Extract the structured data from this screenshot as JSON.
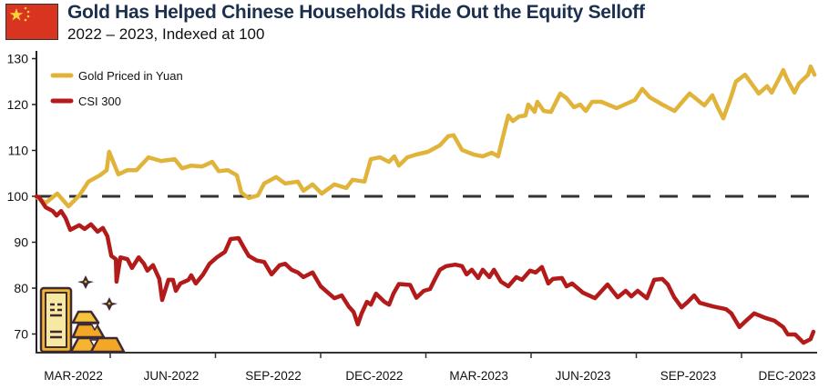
{
  "header": {
    "title": "Gold Has Helped Chinese Households Ride Out the Equity Selloff",
    "subtitle": "2022 – 2023, Indexed at 100",
    "flag_icon": "china-flag-icon"
  },
  "colors": {
    "gold": "#e0b43a",
    "csi": "#b31b1b",
    "baseline": "#333333",
    "axis": "#222222",
    "title": "#1b2f4e"
  },
  "chart_data": {
    "type": "line",
    "title": "Gold Has Helped Chinese Households Ride Out the Equity Selloff",
    "subtitle": "2022 – 2023, Indexed at 100",
    "xlabel": "",
    "ylabel": "",
    "x_units": "months since Jan 2022",
    "xlim": [
      0.9,
      23.1
    ],
    "ylim": [
      66,
      131
    ],
    "yticks": [
      70,
      80,
      90,
      100,
      110,
      120,
      130
    ],
    "ytick_labels": [
      "70",
      "80",
      "90",
      "100",
      "110",
      "120",
      "130"
    ],
    "xticks_at": [
      3,
      6,
      9,
      12,
      15,
      18,
      21
    ],
    "xtick_labels": [
      "MAR-2022",
      "JUN-2022",
      "SEP-2022",
      "DEC-2022",
      "MAR-2023",
      "JUN-2023",
      "SEP-2023",
      "DEC-2023"
    ],
    "xtick_label_positions": [
      1.95,
      4.74,
      7.65,
      10.53,
      13.51,
      16.48,
      19.48,
      22.3
    ],
    "reference_line": 100,
    "grid": false,
    "legend": {
      "placement": "top-left",
      "entries": [
        "Gold Priced in Yuan",
        "CSI 300"
      ]
    },
    "series": [
      {
        "name": "Gold Priced in Yuan",
        "color": "#e0b43a",
        "x": [
          0.9,
          1.16,
          1.49,
          1.81,
          2.12,
          2.38,
          2.71,
          2.9,
          2.97,
          3.23,
          3.49,
          3.75,
          4.09,
          4.45,
          4.84,
          5.05,
          5.31,
          5.62,
          5.91,
          6.09,
          6.35,
          6.61,
          6.74,
          6.95,
          7.21,
          7.39,
          7.73,
          7.99,
          8.35,
          8.51,
          8.77,
          9.03,
          9.39,
          9.73,
          9.91,
          10.25,
          10.43,
          10.69,
          10.95,
          11.1,
          11.23,
          11.47,
          11.73,
          12.06,
          12.4,
          12.64,
          12.79,
          13.03,
          13.36,
          13.62,
          13.88,
          14.06,
          14.22,
          14.35,
          14.48,
          14.66,
          14.84,
          14.92,
          15.1,
          15.18,
          15.36,
          15.57,
          15.83,
          16.01,
          16.22,
          16.4,
          16.56,
          16.74,
          17.0,
          17.44,
          17.96,
          18.17,
          18.38,
          18.74,
          19.09,
          19.29,
          19.52,
          19.94,
          20.17,
          20.32,
          20.48,
          20.69,
          20.84,
          21.1,
          21.49,
          21.73,
          21.86,
          22.06,
          22.19,
          22.3,
          22.51,
          22.64,
          22.9,
          22.97,
          23.08
        ],
        "values": [
          99.8,
          98.6,
          100.6,
          97.8,
          100.2,
          103.2,
          104.6,
          105.7,
          109.7,
          104.8,
          105.7,
          105.7,
          108.5,
          107.7,
          108.1,
          106.1,
          106.7,
          106.5,
          107.5,
          105.5,
          105.7,
          104.6,
          100.8,
          99.6,
          100.2,
          102.8,
          104.2,
          102.8,
          103.2,
          101.2,
          102.6,
          100.6,
          102.6,
          101.8,
          103.6,
          103.2,
          108.1,
          108.5,
          107.5,
          108.7,
          106.7,
          108.5,
          109.1,
          109.7,
          111.1,
          113.1,
          113.3,
          110.1,
          109.1,
          108.7,
          109.5,
          108.7,
          113.7,
          117.6,
          116.4,
          117.4,
          117.6,
          120.0,
          118.4,
          120.6,
          118.6,
          118.4,
          122.4,
          121.4,
          119.4,
          120.0,
          118.6,
          120.6,
          120.6,
          119.2,
          121.0,
          123.4,
          121.6,
          120.0,
          118.6,
          120.4,
          122.4,
          119.8,
          122.0,
          119.4,
          117.0,
          121.4,
          125.0,
          126.5,
          122.4,
          124.0,
          122.6,
          125.5,
          127.5,
          125.5,
          122.6,
          124.6,
          126.5,
          128.3,
          126.5
        ]
      },
      {
        "name": "CSI 300",
        "color": "#b31b1b",
        "x": [
          0.9,
          0.97,
          1.16,
          1.36,
          1.47,
          1.6,
          1.73,
          1.86,
          2.12,
          2.27,
          2.45,
          2.64,
          2.79,
          2.92,
          3.03,
          3.16,
          3.18,
          3.29,
          3.49,
          3.62,
          3.81,
          3.96,
          4.06,
          4.22,
          4.4,
          4.48,
          4.66,
          4.79,
          4.87,
          5.0,
          5.23,
          5.31,
          5.44,
          5.65,
          5.83,
          6.04,
          6.27,
          6.43,
          6.66,
          6.82,
          6.95,
          7.18,
          7.39,
          7.6,
          7.83,
          7.99,
          8.17,
          8.35,
          8.51,
          8.77,
          9.0,
          9.21,
          9.39,
          9.6,
          9.8,
          9.94,
          10.06,
          10.17,
          10.32,
          10.43,
          10.58,
          10.82,
          10.95,
          11.08,
          11.23,
          11.55,
          11.73,
          11.94,
          12.12,
          12.25,
          12.4,
          12.58,
          12.84,
          13.03,
          13.16,
          13.31,
          13.49,
          13.62,
          13.81,
          13.94,
          14.14,
          14.35,
          14.58,
          14.74,
          14.97,
          15.13,
          15.31,
          15.49,
          15.62,
          15.88,
          16.01,
          16.17,
          16.48,
          16.82,
          17.18,
          17.47,
          17.7,
          17.86,
          18.04,
          18.3,
          18.51,
          18.74,
          18.9,
          19.08,
          19.29,
          19.47,
          19.65,
          19.81,
          20.19,
          20.56,
          20.71,
          20.94,
          21.16,
          21.36,
          21.68,
          21.94,
          22.19,
          22.32,
          22.53,
          22.77,
          22.97,
          23.05
        ],
        "values": [
          100.0,
          99.8,
          97.6,
          96.8,
          95.8,
          96.8,
          95.2,
          92.7,
          93.7,
          92.9,
          93.9,
          92.3,
          93.1,
          91.3,
          87.0,
          86.3,
          81.4,
          86.7,
          86.3,
          84.4,
          86.7,
          85.3,
          83.8,
          85.0,
          82.0,
          77.4,
          81.8,
          81.8,
          79.4,
          81.0,
          81.8,
          82.8,
          81.0,
          83.0,
          85.3,
          86.7,
          87.9,
          90.7,
          90.9,
          88.7,
          87.0,
          86.0,
          85.7,
          83.0,
          85.0,
          85.3,
          84.0,
          83.4,
          82.4,
          83.4,
          80.4,
          79.0,
          77.8,
          78.4,
          76.0,
          74.8,
          72.1,
          74.5,
          77.0,
          76.4,
          78.8,
          77.0,
          76.4,
          78.9,
          80.9,
          80.7,
          77.9,
          79.4,
          79.8,
          81.8,
          84.0,
          84.8,
          85.1,
          84.8,
          83.0,
          84.0,
          82.2,
          84.0,
          82.4,
          84.0,
          81.4,
          80.4,
          82.4,
          81.8,
          83.8,
          83.4,
          84.6,
          81.0,
          82.0,
          82.2,
          80.4,
          81.0,
          79.0,
          77.8,
          80.8,
          78.0,
          79.4,
          78.2,
          79.4,
          77.8,
          81.8,
          82.0,
          80.8,
          78.0,
          75.8,
          77.0,
          78.4,
          76.8,
          76.0,
          75.4,
          74.5,
          71.5,
          73.1,
          74.5,
          73.5,
          72.9,
          71.5,
          69.9,
          69.9,
          68.1,
          68.9,
          70.5
        ]
      }
    ]
  },
  "decoration": {
    "gold_bars_icon": "gold-bars-icon",
    "sparkle_icon": "sparkle-icon"
  }
}
